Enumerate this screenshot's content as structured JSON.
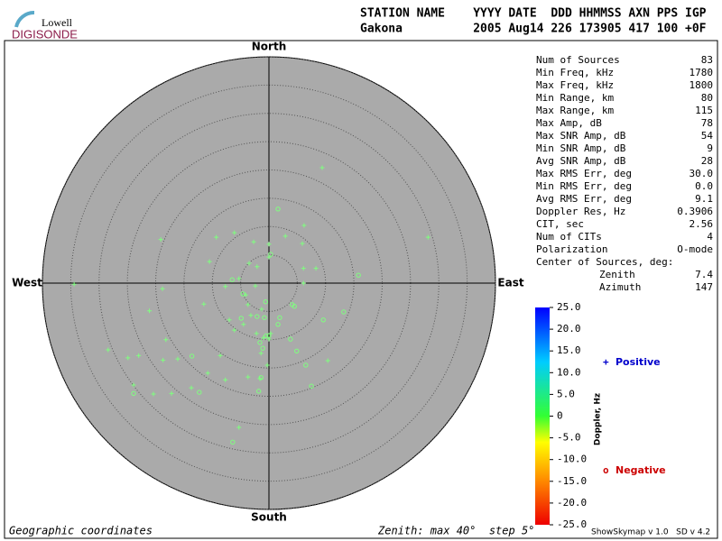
{
  "chart_data": {
    "type": "skymap",
    "logo": [
      "Lowell",
      "DIGISONDE"
    ],
    "header_labels": "STATION NAME    YYYY DATE  DDD HHMMSS AXN PPS IGP",
    "header_values": "Gakona          2005 Aug14 226 173905 417 100 +0F",
    "directions": {
      "north": "North",
      "south": "South",
      "west": "West",
      "east": "East"
    },
    "rlim": [
      0,
      40
    ],
    "rticks": [
      5,
      10,
      15,
      20,
      25,
      30,
      35,
      40
    ],
    "series": [
      {
        "name": "Positive",
        "marker": "+",
        "color": "#7fff7f",
        "legend_color": "#0000cc",
        "x": [
          9.4,
          28.1,
          -19.1,
          -9.3,
          -6.1,
          -2.7,
          0,
          6.2,
          2.9,
          5.9,
          -10.5,
          -3.5,
          -2.1,
          0,
          6.1,
          8.3,
          -34.4,
          -18.8,
          -7.7,
          -5.3,
          -2.4,
          6.1,
          -4.1,
          -11.5,
          -21.1,
          -3.7,
          -7.0,
          -3.2,
          -1.3,
          -6.1,
          -4.5,
          -2.2,
          -1.0,
          0.3,
          -18.2,
          -28.4,
          -24.9,
          -23.0,
          -18.7,
          -8.6,
          -16.1,
          -10.8,
          -7.7,
          -3.7,
          -1.4,
          -0.3,
          -23.9,
          -13.7,
          -20.4,
          -17.2,
          -1.6,
          0,
          10.4,
          -5.3
        ],
        "y": [
          20.4,
          8.1,
          7.7,
          8.1,
          8.9,
          7.3,
          6.9,
          10.2,
          8.3,
          7.0,
          3.8,
          3.5,
          2.9,
          4.6,
          2.6,
          2.6,
          -0.2,
          -1.0,
          -0.6,
          0.8,
          -0.5,
          0,
          -2.1,
          -3.7,
          -4.9,
          -3.8,
          -6.5,
          -5.7,
          -4.6,
          -8.3,
          -7.3,
          -8.9,
          -9.7,
          -8.9,
          -10.0,
          -11.8,
          -13.2,
          -12.8,
          -13.6,
          -12.8,
          -13.4,
          -15.9,
          -17.1,
          -16.6,
          -12.4,
          -14.5,
          -18.0,
          -18.5,
          -19.6,
          -19.5,
          -16.9,
          -9.9,
          -13.7,
          -25.5
        ]
      },
      {
        "name": "Negative",
        "marker": "o",
        "color": "#7fff7f",
        "legend_color": "#cc0000",
        "x": [
          1.6,
          0.3,
          15.8,
          -6.5,
          -4.6,
          -0.6,
          4.1,
          4.5,
          13.2,
          -4.9,
          -2.1,
          -0.8,
          1.9,
          1.6,
          3.8,
          4.9,
          -0.5,
          0,
          -13.6,
          6.5,
          -12.3,
          -1.4,
          -1.8,
          7.5,
          -23.9,
          -6.4,
          -1.1,
          9.6,
          -1.6
        ],
        "y": [
          13.1,
          5.1,
          1.4,
          0.6,
          -1.9,
          -3.3,
          -3.8,
          -4.1,
          -5.1,
          -6.2,
          -5.9,
          -6.1,
          -6.1,
          -7.3,
          -9.9,
          -12.0,
          -9.3,
          -9.3,
          -12.9,
          -14.5,
          -19.3,
          -16.7,
          -19.1,
          -18.2,
          -19.5,
          -28.1,
          -11.5,
          -6.5,
          -10.5
        ]
      }
    ],
    "stats": [
      [
        "Num of Sources",
        83
      ],
      [
        "Min Freq, kHz",
        1780
      ],
      [
        "Max Freq, kHz",
        1800
      ],
      [
        "Min Range, km",
        80
      ],
      [
        "Max Range, km",
        115
      ],
      [
        "Max Amp, dB",
        78
      ],
      [
        "Max SNR Amp, dB",
        54
      ],
      [
        "Min SNR Amp, dB",
        9
      ],
      [
        "Avg SNR Amp, dB",
        28
      ],
      [
        "Max RMS Err, deg",
        "30.0"
      ],
      [
        "Min RMS Err, deg",
        "0.0"
      ],
      [
        "Avg RMS Err, deg",
        9.1
      ],
      [
        "Doppler Res, Hz",
        0.3906
      ],
      [
        "CIT, sec",
        2.56
      ],
      [
        "Num of CITs",
        4
      ],
      [
        "Polarization",
        "O-mode"
      ]
    ],
    "center": {
      "label": "Center of Sources, deg:",
      "rows": [
        [
          "Zenith",
          7.4
        ],
        [
          "Azimuth",
          147
        ]
      ]
    },
    "colorbar": {
      "label": "Doppler, Hz",
      "lim": [
        -25,
        25
      ],
      "ticks": [
        {
          "value": 25,
          "label": "25.0"
        },
        {
          "value": 20,
          "label": "20.0"
        },
        {
          "value": 15,
          "label": "15.0"
        },
        {
          "value": 10,
          "label": "10.0"
        },
        {
          "value": 5,
          "label": "5.0"
        },
        0,
        {
          "value": -5,
          "label": "-5.0"
        },
        {
          "value": -10,
          "label": "-10.0"
        },
        {
          "value": -15,
          "label": "-15.0"
        },
        {
          "value": -20,
          "label": "-20.0"
        },
        {
          "value": -25,
          "label": "-25.0"
        }
      ]
    },
    "footer_left": "Geographic coordinates",
    "footer_mid": "Zenith: max 40°  step 5°",
    "footer_right": "ShowSkymap v 1.0   SD v 4.2"
  }
}
